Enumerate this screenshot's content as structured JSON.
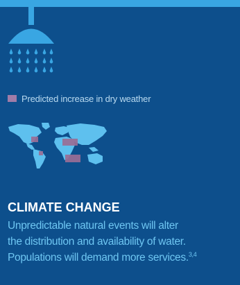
{
  "legend": {
    "label": "Predicted increase in dry weather",
    "swatch_color": "#a07ca8"
  },
  "icons": {
    "shower": "shower-head-icon",
    "map": "world-map-icon"
  },
  "climate": {
    "title": "CLIMATE CHANGE",
    "lines": [
      "Unpredictable natural events will alter",
      "the distribution and availability of water.",
      "Populations will demand more services."
    ],
    "footnote": "3,4"
  },
  "colors": {
    "background": "#0d4f8c",
    "accent": "#39a6e3",
    "text_highlight": "#6ec6f2"
  }
}
